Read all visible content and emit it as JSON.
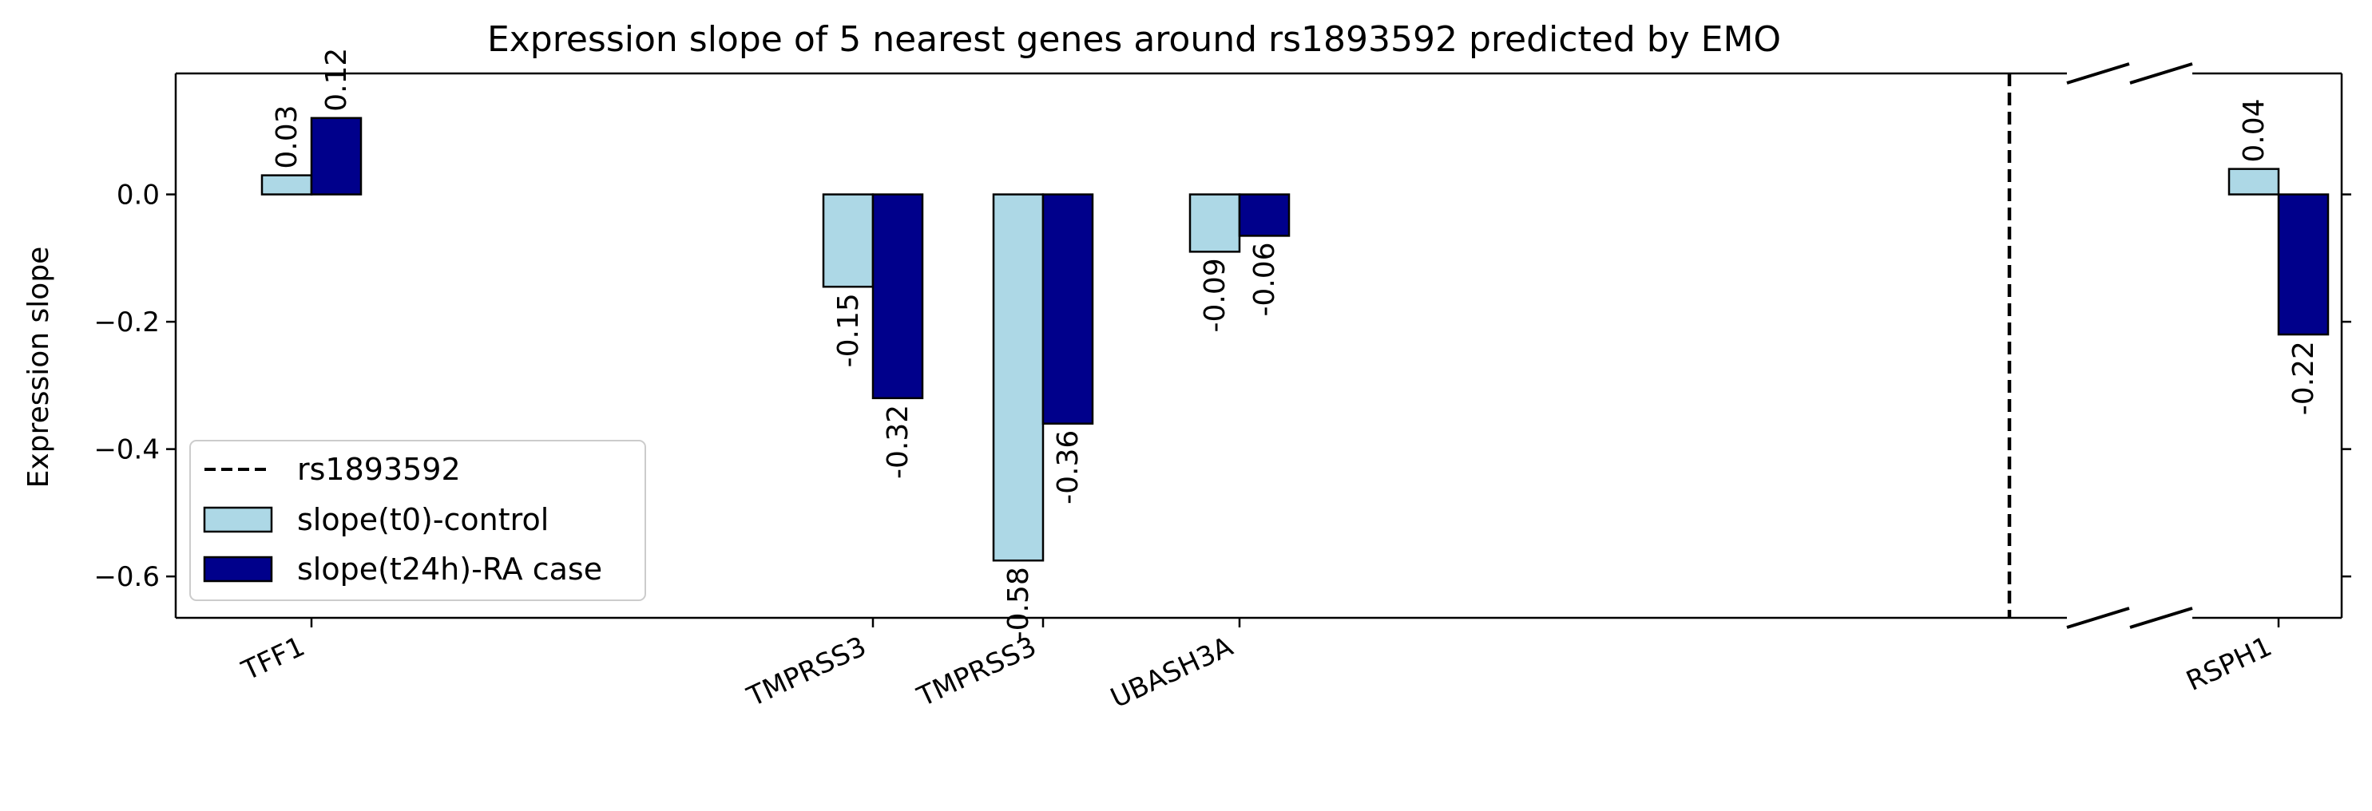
{
  "chart_data": {
    "type": "bar",
    "title": "Expression slope of 5 nearest genes around rs1893592 predicted by EMO",
    "xlabel": "",
    "ylabel": "Expression slope",
    "ylim": [
      -0.665,
      0.19
    ],
    "yticks": [
      0.0,
      -0.2,
      -0.4,
      -0.6
    ],
    "ytick_labels": [
      "0.0",
      "−0.2",
      "−0.4",
      "−0.6"
    ],
    "broken_x_axis": true,
    "grid": false,
    "legend_position": "lower-left",
    "categories": [
      "TFF1",
      "TMPRSS3",
      "TMPRSS3",
      "UBASH3A",
      "RSPH1"
    ],
    "series": [
      {
        "name": "slope(t0)-control",
        "color": "#add8e6",
        "values": [
          0.03,
          -0.145,
          -0.575,
          -0.09,
          0.04
        ],
        "labels": [
          "0.03",
          "-0.15",
          "-0.58",
          "-0.09",
          "0.04"
        ]
      },
      {
        "name": "slope(t24h)-RA case",
        "color": "#00008b",
        "values": [
          0.12,
          -0.32,
          -0.36,
          -0.065,
          -0.22
        ],
        "labels": [
          "0.12",
          "-0.32",
          "-0.36",
          "-0.06",
          "-0.22"
        ]
      }
    ],
    "marker": {
      "name": "rs1893592",
      "style": "dashed",
      "color": "#000000"
    }
  }
}
